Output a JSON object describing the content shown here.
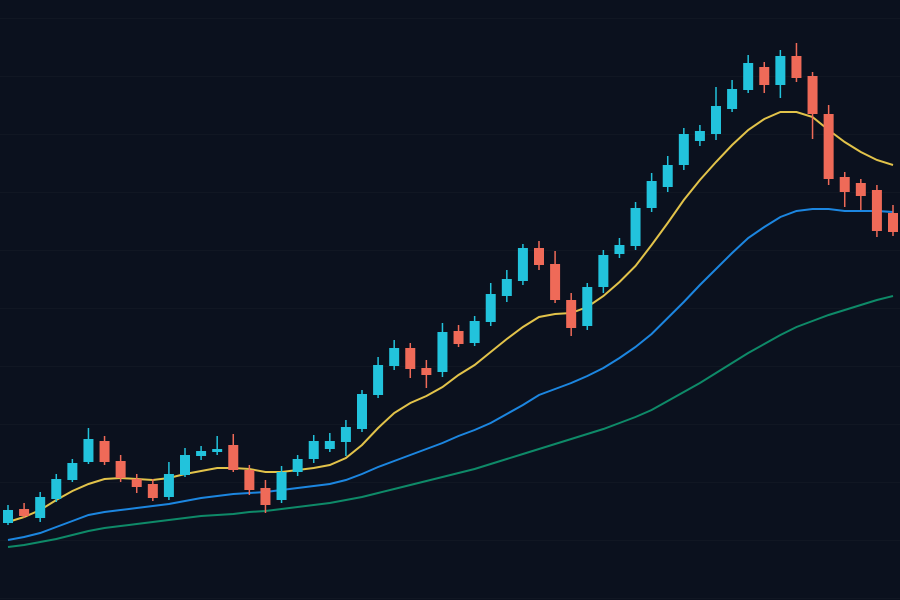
{
  "chart_data": {
    "type": "candlestick",
    "open": [
      77,
      91,
      82,
      101,
      120,
      138,
      159,
      139,
      121,
      116,
      103,
      125,
      144,
      148,
      155,
      130,
      112,
      100,
      128,
      141,
      151,
      158,
      171,
      205,
      234,
      252,
      232,
      228,
      269,
      257,
      278,
      304,
      319,
      352,
      336,
      300,
      274,
      313,
      346,
      354,
      392,
      413,
      435,
      459,
      466,
      491,
      510,
      533,
      515,
      544,
      524,
      486,
      423,
      417,
      410,
      387
    ],
    "high": [
      95,
      97,
      108,
      126,
      141,
      172,
      164,
      145,
      126,
      121,
      138,
      152,
      154,
      164,
      166,
      135,
      120,
      134,
      145,
      165,
      167,
      180,
      210,
      243,
      260,
      257,
      240,
      277,
      275,
      284,
      317,
      330,
      356,
      359,
      349,
      307,
      317,
      350,
      362,
      398,
      427,
      444,
      472,
      475,
      513,
      520,
      545,
      538,
      550,
      557,
      528,
      495,
      428,
      421,
      415,
      395
    ],
    "low": [
      75,
      82,
      78,
      98,
      118,
      136,
      135,
      118,
      107,
      99,
      100,
      123,
      140,
      145,
      128,
      105,
      87,
      97,
      124,
      137,
      148,
      144,
      168,
      202,
      230,
      222,
      212,
      223,
      253,
      254,
      274,
      298,
      315,
      330,
      297,
      264,
      270,
      307,
      342,
      350,
      388,
      408,
      430,
      454,
      460,
      488,
      507,
      507,
      502,
      518,
      461,
      415,
      393,
      390,
      363,
      364
    ],
    "close": [
      90,
      84,
      103,
      121,
      137,
      161,
      138,
      122,
      113,
      102,
      126,
      145,
      149,
      151,
      130,
      110,
      95,
      128,
      141,
      159,
      159,
      173,
      206,
      235,
      252,
      231,
      225,
      268,
      256,
      279,
      306,
      321,
      352,
      335,
      300,
      272,
      313,
      345,
      355,
      392,
      419,
      435,
      466,
      469,
      494,
      511,
      537,
      515,
      544,
      522,
      486,
      421,
      408,
      404,
      369,
      368
    ],
    "up_color": "#22c3dc",
    "down_color": "#ef6a58",
    "series": [
      {
        "color": "#e2c34a",
        "values": [
          78,
          83,
          90,
          100,
          109,
          116,
          121,
          122,
          121,
          120,
          122,
          126,
          129,
          132,
          132,
          131,
          128,
          128,
          130,
          132,
          135,
          142,
          155,
          172,
          187,
          197,
          204,
          213,
          225,
          235,
          248,
          261,
          273,
          283,
          286,
          287,
          293,
          304,
          318,
          334,
          355,
          377,
          400,
          420,
          438,
          455,
          470,
          481,
          488,
          488,
          483,
          470,
          458,
          448,
          440,
          435
        ]
      },
      {
        "color": "#1c86e0",
        "values": [
          60,
          63,
          67,
          73,
          79,
          85,
          88,
          90,
          92,
          94,
          96,
          99,
          102,
          104,
          106,
          107,
          108,
          110,
          112,
          114,
          116,
          120,
          126,
          133,
          139,
          145,
          151,
          157,
          164,
          170,
          177,
          186,
          195,
          205,
          211,
          217,
          224,
          232,
          242,
          253,
          266,
          282,
          298,
          315,
          331,
          347,
          362,
          373,
          383,
          389,
          391,
          391,
          389,
          389,
          389,
          388
        ]
      },
      {
        "color": "#0e8a68",
        "values": [
          53,
          55,
          58,
          61,
          65,
          69,
          72,
          74,
          76,
          78,
          80,
          82,
          84,
          85,
          86,
          88,
          89,
          91,
          93,
          95,
          97,
          100,
          103,
          107,
          111,
          115,
          119,
          123,
          127,
          131,
          136,
          141,
          146,
          151,
          156,
          161,
          166,
          171,
          177,
          183,
          190,
          199,
          208,
          217,
          227,
          237,
          247,
          256,
          265,
          273,
          279,
          285,
          290,
          295,
          300,
          304
        ]
      }
    ],
    "ylim": [
      0,
      600
    ]
  }
}
